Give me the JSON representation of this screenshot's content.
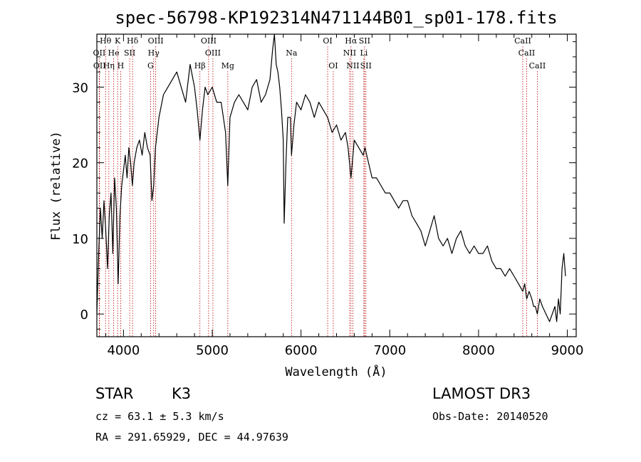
{
  "chart_data": {
    "type": "line",
    "title": "spec-56798-KP192314N471144B01_sp01-178.fits",
    "xlabel": "Wavelength (Å)",
    "ylabel": "Flux (relative)",
    "xlim": [
      3700,
      9100
    ],
    "ylim": [
      -3,
      37
    ],
    "xticks": [
      4000,
      5000,
      6000,
      7000,
      8000,
      9000
    ],
    "yticks": [
      0,
      10,
      20,
      30
    ],
    "spectrum": {
      "x": [
        3700,
        3720,
        3740,
        3760,
        3780,
        3800,
        3820,
        3840,
        3860,
        3880,
        3900,
        3920,
        3940,
        3960,
        3980,
        4000,
        4020,
        4040,
        4060,
        4080,
        4100,
        4120,
        4150,
        4180,
        4210,
        4240,
        4270,
        4300,
        4320,
        4340,
        4360,
        4400,
        4450,
        4500,
        4550,
        4600,
        4650,
        4700,
        4750,
        4800,
        4830,
        4861,
        4890,
        4920,
        4950,
        5000,
        5050,
        5100,
        5150,
        5175,
        5200,
        5250,
        5300,
        5350,
        5400,
        5450,
        5500,
        5550,
        5600,
        5650,
        5680,
        5700,
        5720,
        5740,
        5760,
        5780,
        5800,
        5810,
        5830,
        5850,
        5880,
        5893,
        5920,
        5950,
        6000,
        6050,
        6100,
        6150,
        6200,
        6250,
        6300,
        6350,
        6400,
        6450,
        6500,
        6530,
        6563,
        6600,
        6650,
        6700,
        6720,
        6760,
        6800,
        6850,
        6900,
        6950,
        7000,
        7050,
        7100,
        7150,
        7200,
        7250,
        7300,
        7350,
        7400,
        7450,
        7500,
        7550,
        7600,
        7650,
        7700,
        7750,
        7800,
        7850,
        7900,
        7950,
        8000,
        8050,
        8100,
        8150,
        8200,
        8250,
        8300,
        8350,
        8400,
        8450,
        8498,
        8520,
        8542,
        8570,
        8600,
        8620,
        8640,
        8662,
        8690,
        8720,
        8760,
        8800,
        8830,
        8860,
        8880,
        8900,
        8920,
        8940,
        8960,
        8980
      ],
      "y": [
        0,
        8,
        14,
        10,
        15,
        11,
        6,
        13,
        16,
        8,
        18,
        14,
        4,
        13,
        17,
        19,
        21,
        18,
        22,
        20,
        17,
        20,
        22,
        23,
        21,
        24,
        22,
        21,
        15,
        17,
        22,
        26,
        29,
        30,
        31,
        32,
        30,
        28,
        33,
        30,
        27,
        23,
        27,
        30,
        29,
        30,
        28,
        28,
        24,
        17,
        26,
        28,
        29,
        28,
        27,
        30,
        31,
        28,
        29,
        31,
        35,
        37,
        33,
        32,
        30,
        27,
        23,
        12,
        20,
        26,
        26,
        21,
        25,
        28,
        27,
        29,
        28,
        26,
        28,
        27,
        26,
        24,
        25,
        23,
        24,
        22,
        18,
        23,
        22,
        21,
        22,
        20,
        18,
        18,
        17,
        16,
        16,
        15,
        14,
        15,
        15,
        13,
        12,
        11,
        9,
        11,
        13,
        10,
        9,
        10,
        8,
        10,
        11,
        9,
        8,
        9,
        8,
        8,
        9,
        7,
        6,
        6,
        5,
        6,
        5,
        4,
        3,
        4,
        2,
        3,
        2,
        1,
        1,
        0,
        2,
        1,
        0,
        -1,
        0,
        1,
        -1,
        2,
        0,
        6,
        8,
        5
      ]
    },
    "emission_lines": [
      {
        "name": "Hθ",
        "x": 3798,
        "row": 1
      },
      {
        "name": "K",
        "x": 3934,
        "row": 1
      },
      {
        "name": "Hδ",
        "x": 4102,
        "row": 1
      },
      {
        "name": "OIII",
        "x": 4363,
        "row": 1
      },
      {
        "name": "OIII",
        "x": 4959,
        "row": 1
      },
      {
        "name": "OI",
        "x": 6300,
        "row": 1
      },
      {
        "name": "Hα",
        "x": 6563,
        "row": 1
      },
      {
        "name": "SII",
        "x": 6716,
        "row": 1
      },
      {
        "name": "CaII",
        "x": 8498,
        "row": 1
      },
      {
        "name": "OII",
        "x": 3727,
        "row": 2
      },
      {
        "name": "He",
        "x": 3889,
        "row": 2
      },
      {
        "name": "SII",
        "x": 4070,
        "row": 2
      },
      {
        "name": "Hγ",
        "x": 4340,
        "row": 2
      },
      {
        "name": "OIII",
        "x": 5007,
        "row": 2
      },
      {
        "name": "Na",
        "x": 5893,
        "row": 2
      },
      {
        "name": "NII",
        "x": 6548,
        "row": 2
      },
      {
        "name": "Li",
        "x": 6708,
        "row": 2
      },
      {
        "name": "CaII",
        "x": 8542,
        "row": 2
      },
      {
        "name": "OII",
        "x": 3730,
        "row": 3
      },
      {
        "name": "Hη",
        "x": 3835,
        "row": 3
      },
      {
        "name": "H",
        "x": 3968,
        "row": 3
      },
      {
        "name": "G",
        "x": 4305,
        "row": 3
      },
      {
        "name": "Hβ",
        "x": 4861,
        "row": 3
      },
      {
        "name": "Mg",
        "x": 5175,
        "row": 3
      },
      {
        "name": "OI",
        "x": 6363,
        "row": 3
      },
      {
        "name": "NII",
        "x": 6584,
        "row": 3
      },
      {
        "name": "SII",
        "x": 6731,
        "row": 3
      },
      {
        "name": "CaII",
        "x": 8662,
        "row": 3
      }
    ],
    "colors": {
      "spectrum": "#000000",
      "line_markers": "#c00000"
    }
  },
  "info": {
    "class": "STAR",
    "subclass": "K3",
    "cz": "cz = 63.1 ± 5.3 km/s",
    "coords": "RA = 291.65929, DEC =  44.97639",
    "survey": "LAMOST DR3",
    "obs_date": "Obs-Date: 20140520"
  }
}
